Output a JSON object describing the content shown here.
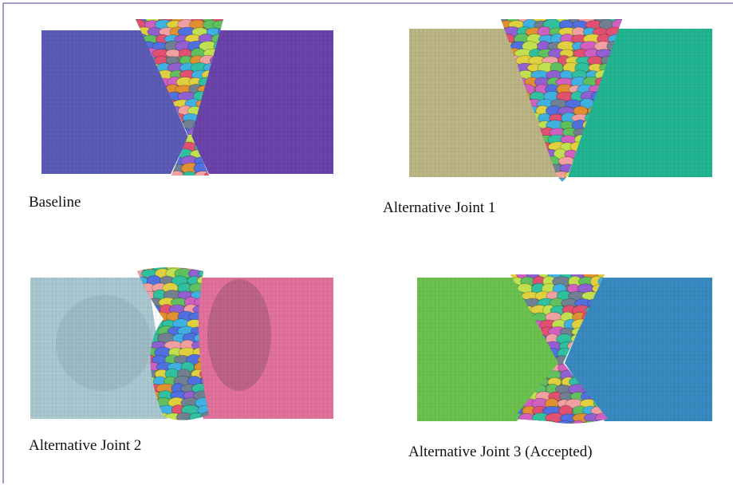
{
  "figure": {
    "panels": [
      {
        "caption": "Baseline"
      },
      {
        "caption": "Alternative Joint 1"
      },
      {
        "caption": "Alternative Joint 2"
      },
      {
        "caption": "Alternative Joint 3 (Accepted)"
      }
    ]
  }
}
